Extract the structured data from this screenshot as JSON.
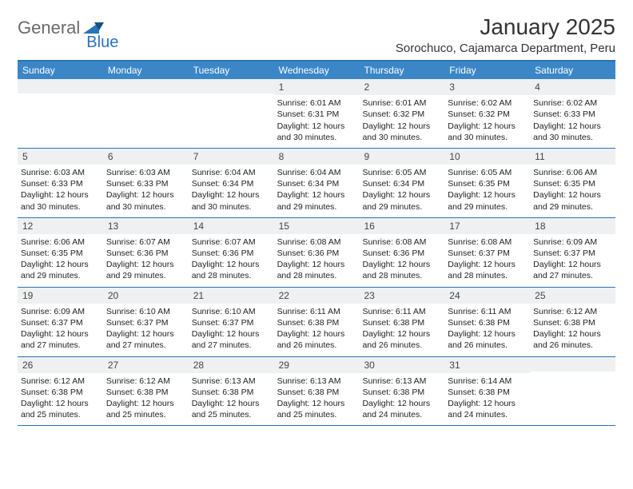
{
  "brand": {
    "part1": "General",
    "part2": "Blue"
  },
  "title": "January 2025",
  "location": "Sorochuco, Cajamarca Department, Peru",
  "colors": {
    "header_bar": "#3b86c7",
    "accent_border": "#2b73b8",
    "daynum_bg": "#eef0f1",
    "text": "#333333",
    "logo_gray": "#6a6a6a",
    "logo_blue": "#2b73b8",
    "background": "#ffffff"
  },
  "weekdays": [
    "Sunday",
    "Monday",
    "Tuesday",
    "Wednesday",
    "Thursday",
    "Friday",
    "Saturday"
  ],
  "weeks": [
    [
      {
        "n": "",
        "sunrise": "",
        "sunset": "",
        "daylight": ""
      },
      {
        "n": "",
        "sunrise": "",
        "sunset": "",
        "daylight": ""
      },
      {
        "n": "",
        "sunrise": "",
        "sunset": "",
        "daylight": ""
      },
      {
        "n": "1",
        "sunrise": "Sunrise: 6:01 AM",
        "sunset": "Sunset: 6:31 PM",
        "daylight": "Daylight: 12 hours and 30 minutes."
      },
      {
        "n": "2",
        "sunrise": "Sunrise: 6:01 AM",
        "sunset": "Sunset: 6:32 PM",
        "daylight": "Daylight: 12 hours and 30 minutes."
      },
      {
        "n": "3",
        "sunrise": "Sunrise: 6:02 AM",
        "sunset": "Sunset: 6:32 PM",
        "daylight": "Daylight: 12 hours and 30 minutes."
      },
      {
        "n": "4",
        "sunrise": "Sunrise: 6:02 AM",
        "sunset": "Sunset: 6:33 PM",
        "daylight": "Daylight: 12 hours and 30 minutes."
      }
    ],
    [
      {
        "n": "5",
        "sunrise": "Sunrise: 6:03 AM",
        "sunset": "Sunset: 6:33 PM",
        "daylight": "Daylight: 12 hours and 30 minutes."
      },
      {
        "n": "6",
        "sunrise": "Sunrise: 6:03 AM",
        "sunset": "Sunset: 6:33 PM",
        "daylight": "Daylight: 12 hours and 30 minutes."
      },
      {
        "n": "7",
        "sunrise": "Sunrise: 6:04 AM",
        "sunset": "Sunset: 6:34 PM",
        "daylight": "Daylight: 12 hours and 30 minutes."
      },
      {
        "n": "8",
        "sunrise": "Sunrise: 6:04 AM",
        "sunset": "Sunset: 6:34 PM",
        "daylight": "Daylight: 12 hours and 29 minutes."
      },
      {
        "n": "9",
        "sunrise": "Sunrise: 6:05 AM",
        "sunset": "Sunset: 6:34 PM",
        "daylight": "Daylight: 12 hours and 29 minutes."
      },
      {
        "n": "10",
        "sunrise": "Sunrise: 6:05 AM",
        "sunset": "Sunset: 6:35 PM",
        "daylight": "Daylight: 12 hours and 29 minutes."
      },
      {
        "n": "11",
        "sunrise": "Sunrise: 6:06 AM",
        "sunset": "Sunset: 6:35 PM",
        "daylight": "Daylight: 12 hours and 29 minutes."
      }
    ],
    [
      {
        "n": "12",
        "sunrise": "Sunrise: 6:06 AM",
        "sunset": "Sunset: 6:35 PM",
        "daylight": "Daylight: 12 hours and 29 minutes."
      },
      {
        "n": "13",
        "sunrise": "Sunrise: 6:07 AM",
        "sunset": "Sunset: 6:36 PM",
        "daylight": "Daylight: 12 hours and 29 minutes."
      },
      {
        "n": "14",
        "sunrise": "Sunrise: 6:07 AM",
        "sunset": "Sunset: 6:36 PM",
        "daylight": "Daylight: 12 hours and 28 minutes."
      },
      {
        "n": "15",
        "sunrise": "Sunrise: 6:08 AM",
        "sunset": "Sunset: 6:36 PM",
        "daylight": "Daylight: 12 hours and 28 minutes."
      },
      {
        "n": "16",
        "sunrise": "Sunrise: 6:08 AM",
        "sunset": "Sunset: 6:36 PM",
        "daylight": "Daylight: 12 hours and 28 minutes."
      },
      {
        "n": "17",
        "sunrise": "Sunrise: 6:08 AM",
        "sunset": "Sunset: 6:37 PM",
        "daylight": "Daylight: 12 hours and 28 minutes."
      },
      {
        "n": "18",
        "sunrise": "Sunrise: 6:09 AM",
        "sunset": "Sunset: 6:37 PM",
        "daylight": "Daylight: 12 hours and 27 minutes."
      }
    ],
    [
      {
        "n": "19",
        "sunrise": "Sunrise: 6:09 AM",
        "sunset": "Sunset: 6:37 PM",
        "daylight": "Daylight: 12 hours and 27 minutes."
      },
      {
        "n": "20",
        "sunrise": "Sunrise: 6:10 AM",
        "sunset": "Sunset: 6:37 PM",
        "daylight": "Daylight: 12 hours and 27 minutes."
      },
      {
        "n": "21",
        "sunrise": "Sunrise: 6:10 AM",
        "sunset": "Sunset: 6:37 PM",
        "daylight": "Daylight: 12 hours and 27 minutes."
      },
      {
        "n": "22",
        "sunrise": "Sunrise: 6:11 AM",
        "sunset": "Sunset: 6:38 PM",
        "daylight": "Daylight: 12 hours and 26 minutes."
      },
      {
        "n": "23",
        "sunrise": "Sunrise: 6:11 AM",
        "sunset": "Sunset: 6:38 PM",
        "daylight": "Daylight: 12 hours and 26 minutes."
      },
      {
        "n": "24",
        "sunrise": "Sunrise: 6:11 AM",
        "sunset": "Sunset: 6:38 PM",
        "daylight": "Daylight: 12 hours and 26 minutes."
      },
      {
        "n": "25",
        "sunrise": "Sunrise: 6:12 AM",
        "sunset": "Sunset: 6:38 PM",
        "daylight": "Daylight: 12 hours and 26 minutes."
      }
    ],
    [
      {
        "n": "26",
        "sunrise": "Sunrise: 6:12 AM",
        "sunset": "Sunset: 6:38 PM",
        "daylight": "Daylight: 12 hours and 25 minutes."
      },
      {
        "n": "27",
        "sunrise": "Sunrise: 6:12 AM",
        "sunset": "Sunset: 6:38 PM",
        "daylight": "Daylight: 12 hours and 25 minutes."
      },
      {
        "n": "28",
        "sunrise": "Sunrise: 6:13 AM",
        "sunset": "Sunset: 6:38 PM",
        "daylight": "Daylight: 12 hours and 25 minutes."
      },
      {
        "n": "29",
        "sunrise": "Sunrise: 6:13 AM",
        "sunset": "Sunset: 6:38 PM",
        "daylight": "Daylight: 12 hours and 25 minutes."
      },
      {
        "n": "30",
        "sunrise": "Sunrise: 6:13 AM",
        "sunset": "Sunset: 6:38 PM",
        "daylight": "Daylight: 12 hours and 24 minutes."
      },
      {
        "n": "31",
        "sunrise": "Sunrise: 6:14 AM",
        "sunset": "Sunset: 6:38 PM",
        "daylight": "Daylight: 12 hours and 24 minutes."
      },
      {
        "n": "",
        "sunrise": "",
        "sunset": "",
        "daylight": ""
      }
    ]
  ]
}
